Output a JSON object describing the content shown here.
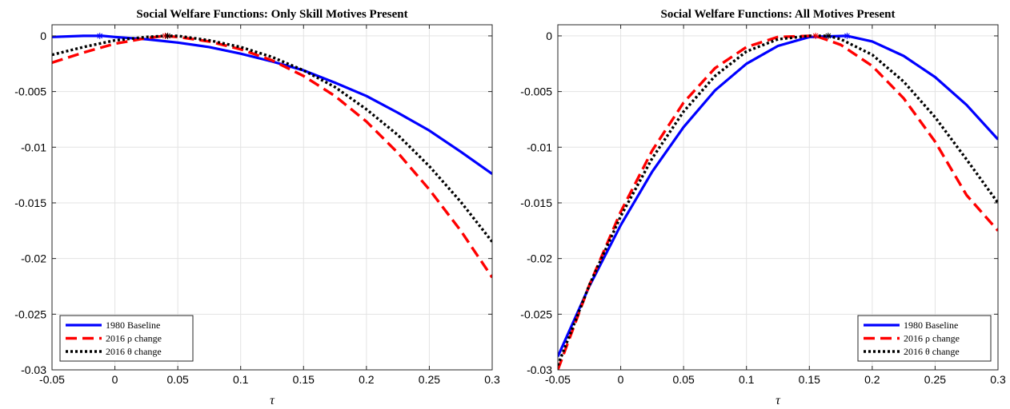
{
  "chart_data": [
    {
      "type": "line",
      "title": "Social Welfare Functions: Only Skill Motives Present",
      "xlabel": "τ",
      "ylabel": "",
      "xlim": [
        -0.05,
        0.3
      ],
      "ylim": [
        -0.03,
        0.001
      ],
      "xticks": [
        -0.05,
        0,
        0.05,
        0.1,
        0.15,
        0.2,
        0.25,
        0.3
      ],
      "xtick_labels": [
        "-0.05",
        "0",
        "0.05",
        "0.1",
        "0.15",
        "0.2",
        "0.25",
        "0.3"
      ],
      "yticks": [
        0,
        -0.005,
        -0.01,
        -0.015,
        -0.02,
        -0.025,
        -0.03
      ],
      "ytick_labels": [
        "0",
        "-0.005",
        "-0.01",
        "-0.015",
        "-0.02",
        "-0.025",
        "-0.03"
      ],
      "grid": true,
      "legend_position": "bottom-left",
      "series": [
        {
          "name": "1980 Baseline",
          "color": "#0000ff",
          "style": "solid",
          "x": [
            -0.05,
            -0.025,
            -0.01,
            0,
            0.025,
            0.05,
            0.075,
            0.1,
            0.125,
            0.15,
            0.175,
            0.2,
            0.225,
            0.25,
            0.275,
            0.3
          ],
          "y": [
            -0.0001,
            0.0,
            0.0,
            -0.0001,
            -0.0003,
            -0.0006,
            -0.001,
            -0.0016,
            -0.0023,
            -0.0031,
            -0.0042,
            -0.0054,
            -0.0069,
            -0.0085,
            -0.0104,
            -0.0124
          ],
          "marker_x": -0.012,
          "marker_y": 0.0
        },
        {
          "name": "2016 ρ change",
          "color": "#ff0000",
          "style": "dashed",
          "x": [
            -0.05,
            -0.025,
            0,
            0.025,
            0.04,
            0.05,
            0.075,
            0.1,
            0.125,
            0.15,
            0.175,
            0.2,
            0.225,
            0.25,
            0.275,
            0.3
          ],
          "y": [
            -0.0024,
            -0.0015,
            -0.0007,
            -0.0002,
            0.0,
            -0.0001,
            -0.0005,
            -0.0012,
            -0.0022,
            -0.0036,
            -0.0054,
            -0.0077,
            -0.0105,
            -0.0138,
            -0.0175,
            -0.0217
          ],
          "marker_x": 0.04,
          "marker_y": 0.0
        },
        {
          "name": "2016 θ change",
          "color": "#000000",
          "style": "dotted",
          "x": [
            -0.05,
            -0.025,
            0,
            0.025,
            0.04,
            0.05,
            0.075,
            0.1,
            0.125,
            0.15,
            0.175,
            0.2,
            0.225,
            0.25,
            0.275,
            0.3
          ],
          "y": [
            -0.0017,
            -0.001,
            -0.0004,
            -0.0001,
            0.0,
            0.0,
            -0.0004,
            -0.001,
            -0.0019,
            -0.0031,
            -0.0046,
            -0.0066,
            -0.0089,
            -0.0117,
            -0.0149,
            -0.0185
          ],
          "marker_x": 0.042,
          "marker_y": 0.0
        }
      ]
    },
    {
      "type": "line",
      "title": "Social Welfare Functions: All Motives Present",
      "xlabel": "τ",
      "ylabel": "",
      "xlim": [
        -0.05,
        0.3
      ],
      "ylim": [
        -0.03,
        0.001
      ],
      "xticks": [
        -0.05,
        0,
        0.05,
        0.1,
        0.15,
        0.2,
        0.25,
        0.3
      ],
      "xtick_labels": [
        "-0.05",
        "0",
        "0.05",
        "0.1",
        "0.15",
        "0.2",
        "0.25",
        "0.3"
      ],
      "yticks": [
        0,
        -0.005,
        -0.01,
        -0.015,
        -0.02,
        -0.025,
        -0.03
      ],
      "ytick_labels": [
        "0",
        "-0.005",
        "-0.01",
        "-0.015",
        "-0.02",
        "-0.025",
        "-0.03"
      ],
      "grid": true,
      "legend_position": "bottom-right",
      "series": [
        {
          "name": "1980 Baseline",
          "color": "#0000ff",
          "style": "solid",
          "x": [
            -0.05,
            -0.025,
            0,
            0.025,
            0.05,
            0.075,
            0.1,
            0.125,
            0.15,
            0.18,
            0.2,
            0.225,
            0.25,
            0.275,
            0.3
          ],
          "y": [
            -0.0288,
            -0.0225,
            -0.017,
            -0.0122,
            -0.0082,
            -0.0049,
            -0.0025,
            -0.0009,
            -0.0001,
            0.0,
            -0.0005,
            -0.0018,
            -0.0037,
            -0.0062,
            -0.0093
          ],
          "marker_x": 0.18,
          "marker_y": 0.0
        },
        {
          "name": "2016 ρ change",
          "color": "#ff0000",
          "style": "dashed",
          "x": [
            -0.05,
            -0.025,
            0,
            0.025,
            0.05,
            0.075,
            0.1,
            0.125,
            0.15,
            0.155,
            0.175,
            0.2,
            0.225,
            0.25,
            0.275,
            0.3
          ],
          "y": [
            -0.03,
            -0.0224,
            -0.0158,
            -0.0103,
            -0.006,
            -0.0029,
            -0.001,
            -0.0001,
            0.0,
            0.0,
            -0.0008,
            -0.0027,
            -0.0056,
            -0.0095,
            -0.0143,
            -0.0175
          ],
          "marker_x": 0.155,
          "marker_y": 0.0
        },
        {
          "name": "2016 θ change",
          "color": "#000000",
          "style": "dotted",
          "x": [
            -0.05,
            -0.025,
            0,
            0.025,
            0.05,
            0.075,
            0.1,
            0.125,
            0.15,
            0.165,
            0.175,
            0.2,
            0.225,
            0.25,
            0.275,
            0.3
          ],
          "y": [
            -0.0296,
            -0.0224,
            -0.0162,
            -0.011,
            -0.0068,
            -0.0036,
            -0.0014,
            -0.0003,
            0.0,
            0.0,
            -0.0003,
            -0.0017,
            -0.0041,
            -0.0073,
            -0.0111,
            -0.015
          ],
          "marker_x": 0.165,
          "marker_y": 0.0
        }
      ]
    }
  ]
}
